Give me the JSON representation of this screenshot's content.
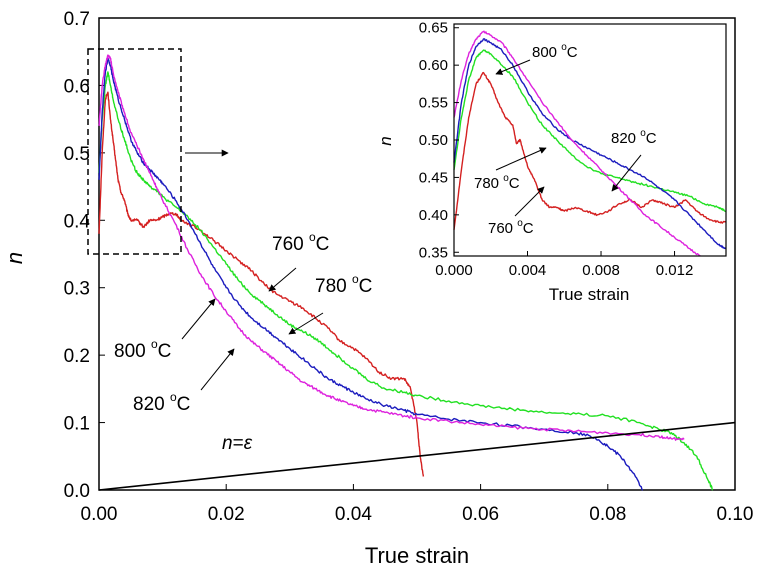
{
  "chart_data": [
    {
      "type": "line",
      "xlabel": "True strain",
      "ylabel": "n",
      "xlim": [
        0.0,
        0.1
      ],
      "ylim": [
        0.0,
        0.7
      ],
      "xticks": [
        "0.00",
        "0.02",
        "0.04",
        "0.06",
        "0.08",
        "0.10"
      ],
      "yticks": [
        "0.0",
        "0.1",
        "0.2",
        "0.3",
        "0.4",
        "0.5",
        "0.6",
        "0.7"
      ],
      "grid": false,
      "series": [
        {
          "name": "760 °C",
          "color": "#d42020",
          "x": [
            0.0,
            0.0005,
            0.001,
            0.0014,
            0.0018,
            0.0022,
            0.0026,
            0.003,
            0.0035,
            0.004,
            0.0045,
            0.005,
            0.006,
            0.007,
            0.008,
            0.009,
            0.01,
            0.011,
            0.012,
            0.013,
            0.014,
            0.016,
            0.018,
            0.02,
            0.022,
            0.024,
            0.026,
            0.028,
            0.03,
            0.032,
            0.034,
            0.036,
            0.038,
            0.04,
            0.042,
            0.044,
            0.046,
            0.048,
            0.049,
            0.05,
            0.0505,
            0.051
          ],
          "y": [
            0.38,
            0.5,
            0.58,
            0.59,
            0.55,
            0.52,
            0.49,
            0.46,
            0.44,
            0.43,
            0.41,
            0.4,
            0.4,
            0.39,
            0.4,
            0.4,
            0.405,
            0.41,
            0.41,
            0.4,
            0.395,
            0.385,
            0.37,
            0.355,
            0.34,
            0.325,
            0.305,
            0.29,
            0.28,
            0.27,
            0.255,
            0.24,
            0.22,
            0.21,
            0.195,
            0.175,
            0.165,
            0.165,
            0.15,
            0.1,
            0.05,
            0.02
          ]
        },
        {
          "name": "780 °C",
          "color": "#22e022",
          "x": [
            0.0,
            0.0005,
            0.001,
            0.0014,
            0.0018,
            0.0022,
            0.003,
            0.004,
            0.005,
            0.006,
            0.007,
            0.008,
            0.009,
            0.01,
            0.012,
            0.014,
            0.016,
            0.018,
            0.02,
            0.022,
            0.024,
            0.026,
            0.028,
            0.03,
            0.032,
            0.034,
            0.036,
            0.038,
            0.04,
            0.042,
            0.045,
            0.048,
            0.05,
            0.055,
            0.06,
            0.065,
            0.07,
            0.075,
            0.08,
            0.085,
            0.088,
            0.09,
            0.092,
            0.094,
            0.0955,
            0.0965
          ],
          "y": [
            0.47,
            0.55,
            0.6,
            0.62,
            0.6,
            0.58,
            0.55,
            0.52,
            0.49,
            0.47,
            0.46,
            0.45,
            0.445,
            0.435,
            0.42,
            0.405,
            0.385,
            0.36,
            0.335,
            0.31,
            0.29,
            0.275,
            0.26,
            0.245,
            0.235,
            0.225,
            0.21,
            0.195,
            0.18,
            0.165,
            0.15,
            0.145,
            0.14,
            0.132,
            0.125,
            0.12,
            0.115,
            0.113,
            0.11,
            0.1,
            0.09,
            0.085,
            0.07,
            0.05,
            0.02,
            0.0
          ]
        },
        {
          "name": "800 °C",
          "color": "#1c1cbe",
          "x": [
            0.0,
            0.0005,
            0.001,
            0.0014,
            0.0018,
            0.0022,
            0.003,
            0.004,
            0.005,
            0.006,
            0.007,
            0.008,
            0.009,
            0.01,
            0.012,
            0.014,
            0.016,
            0.018,
            0.02,
            0.022,
            0.024,
            0.026,
            0.028,
            0.03,
            0.032,
            0.034,
            0.036,
            0.038,
            0.04,
            0.042,
            0.045,
            0.048,
            0.05,
            0.055,
            0.06,
            0.065,
            0.07,
            0.075,
            0.078,
            0.08,
            0.082,
            0.084,
            0.0855
          ],
          "y": [
            0.46,
            0.56,
            0.62,
            0.64,
            0.63,
            0.61,
            0.58,
            0.55,
            0.52,
            0.5,
            0.485,
            0.475,
            0.465,
            0.455,
            0.43,
            0.4,
            0.365,
            0.33,
            0.3,
            0.275,
            0.255,
            0.24,
            0.225,
            0.21,
            0.195,
            0.18,
            0.165,
            0.155,
            0.145,
            0.135,
            0.125,
            0.118,
            0.112,
            0.105,
            0.1,
            0.095,
            0.09,
            0.085,
            0.078,
            0.065,
            0.05,
            0.025,
            0.0
          ]
        },
        {
          "name": "820 °C",
          "color": "#dd22dd",
          "x": [
            0.0,
            0.0005,
            0.001,
            0.0014,
            0.0018,
            0.0022,
            0.003,
            0.004,
            0.005,
            0.006,
            0.007,
            0.008,
            0.009,
            0.01,
            0.012,
            0.014,
            0.016,
            0.018,
            0.02,
            0.022,
            0.024,
            0.026,
            0.028,
            0.03,
            0.032,
            0.034,
            0.036,
            0.038,
            0.04,
            0.042,
            0.045,
            0.048,
            0.05,
            0.055,
            0.06,
            0.065,
            0.07,
            0.075,
            0.08,
            0.085,
            0.088,
            0.09,
            0.092
          ],
          "y": [
            0.54,
            0.6,
            0.63,
            0.645,
            0.64,
            0.62,
            0.59,
            0.56,
            0.53,
            0.51,
            0.49,
            0.47,
            0.45,
            0.43,
            0.395,
            0.355,
            0.32,
            0.29,
            0.265,
            0.24,
            0.22,
            0.205,
            0.19,
            0.175,
            0.16,
            0.15,
            0.14,
            0.132,
            0.125,
            0.12,
            0.115,
            0.11,
            0.107,
            0.102,
            0.097,
            0.093,
            0.09,
            0.087,
            0.085,
            0.082,
            0.08,
            0.076,
            0.075
          ]
        },
        {
          "name": "n=ε",
          "color": "#000000",
          "x": [
            0.0,
            0.1
          ],
          "y": [
            0.0,
            0.1
          ]
        }
      ],
      "annotations": {
        "t760": {
          "base": "760 ",
          "sup": "o",
          "tail": "C"
        },
        "t780": {
          "base": "780 ",
          "sup": "o",
          "tail": "C"
        },
        "t800": {
          "base": "800 ",
          "sup": "o",
          "tail": "C"
        },
        "t820": {
          "base": "820 ",
          "sup": "o",
          "tail": "C"
        },
        "neps_n": "n",
        "neps_eq": "=",
        "neps_eps": "ε"
      }
    },
    {
      "type": "line",
      "xlabel": "True strain",
      "ylabel": "n",
      "xlim": [
        0.0,
        0.0148
      ],
      "ylim": [
        0.345,
        0.655
      ],
      "xticks": [
        "0.000",
        "0.004",
        "0.008",
        "0.012"
      ],
      "yticks": [
        "0.35",
        "0.40",
        "0.45",
        "0.50",
        "0.55",
        "0.60",
        "0.65"
      ],
      "grid": false,
      "series": [
        {
          "name": "760 °C",
          "color": "#d42020",
          "x": [
            0.0,
            0.0004,
            0.0008,
            0.0012,
            0.0016,
            0.002,
            0.0024,
            0.0028,
            0.0032,
            0.0034,
            0.0036,
            0.004,
            0.0044,
            0.0048,
            0.0052,
            0.0056,
            0.006,
            0.0066,
            0.0072,
            0.0078,
            0.0084,
            0.009,
            0.0096,
            0.0102,
            0.0108,
            0.0114,
            0.012,
            0.0126,
            0.0132,
            0.0138,
            0.0144,
            0.0148
          ],
          "y": [
            0.38,
            0.46,
            0.53,
            0.575,
            0.59,
            0.575,
            0.55,
            0.53,
            0.52,
            0.495,
            0.5,
            0.465,
            0.445,
            0.42,
            0.41,
            0.41,
            0.405,
            0.41,
            0.405,
            0.4,
            0.405,
            0.415,
            0.42,
            0.41,
            0.42,
            0.415,
            0.41,
            0.42,
            0.405,
            0.395,
            0.39,
            0.39
          ]
        },
        {
          "name": "780 °C",
          "color": "#22e022",
          "x": [
            0.0,
            0.0004,
            0.0008,
            0.0012,
            0.0016,
            0.002,
            0.0026,
            0.0032,
            0.004,
            0.0048,
            0.0056,
            0.0064,
            0.0072,
            0.008,
            0.0088,
            0.0096,
            0.0104,
            0.0112,
            0.012,
            0.0128,
            0.0136,
            0.0144,
            0.0148
          ],
          "y": [
            0.46,
            0.53,
            0.58,
            0.61,
            0.62,
            0.615,
            0.6,
            0.585,
            0.55,
            0.52,
            0.5,
            0.48,
            0.465,
            0.455,
            0.45,
            0.445,
            0.44,
            0.435,
            0.43,
            0.425,
            0.415,
            0.41,
            0.405
          ]
        },
        {
          "name": "800 °C",
          "color": "#1c1cbe",
          "x": [
            0.0,
            0.0004,
            0.0008,
            0.0012,
            0.0016,
            0.002,
            0.0026,
            0.0032,
            0.004,
            0.0048,
            0.0056,
            0.0064,
            0.0072,
            0.008,
            0.0088,
            0.0096,
            0.0104,
            0.0112,
            0.012,
            0.0128,
            0.0136,
            0.0144,
            0.0148
          ],
          "y": [
            0.47,
            0.55,
            0.6,
            0.625,
            0.635,
            0.63,
            0.62,
            0.6,
            0.565,
            0.535,
            0.515,
            0.5,
            0.49,
            0.48,
            0.47,
            0.46,
            0.45,
            0.435,
            0.42,
            0.4,
            0.38,
            0.36,
            0.355
          ]
        },
        {
          "name": "820 °C",
          "color": "#dd22dd",
          "x": [
            0.0,
            0.0004,
            0.0008,
            0.0012,
            0.0016,
            0.002,
            0.0026,
            0.0032,
            0.004,
            0.0048,
            0.0056,
            0.0064,
            0.0072,
            0.008,
            0.0088,
            0.0096,
            0.0104,
            0.0112,
            0.012,
            0.0128,
            0.0134
          ],
          "y": [
            0.53,
            0.58,
            0.615,
            0.635,
            0.645,
            0.64,
            0.63,
            0.61,
            0.58,
            0.55,
            0.525,
            0.5,
            0.48,
            0.46,
            0.44,
            0.42,
            0.4,
            0.385,
            0.37,
            0.355,
            0.345
          ]
        }
      ],
      "annotations": {
        "t760": {
          "base": "760 ",
          "sup": "o",
          "tail": "C"
        },
        "t780": {
          "base": "780 ",
          "sup": "o",
          "tail": "C"
        },
        "t800": {
          "base": "800 ",
          "sup": "o",
          "tail": "C"
        },
        "t820": {
          "base": "820 ",
          "sup": "o",
          "tail": "C"
        }
      }
    }
  ]
}
